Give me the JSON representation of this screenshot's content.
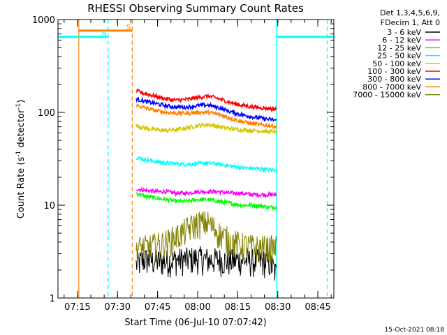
{
  "chart_data": {
    "type": "line",
    "title": "RHESSI Observing Summary Count Rates",
    "xlabel": "Start Time (06-Jul-10 07:07:42)",
    "ylabel": "Count Rate (s",
    "ylabel_sup1": "-1",
    "ylabel_mid": " detector",
    "ylabel_sup2": "-1",
    "ylabel_end": ")",
    "yscale": "log",
    "ylim": [
      1,
      1000
    ],
    "xlim_min": [
      67.7,
      171
    ],
    "y_ticks": [
      {
        "value": 1,
        "label": "1"
      },
      {
        "value": 10,
        "label": "10"
      },
      {
        "value": 100,
        "label": "100"
      },
      {
        "value": 1000,
        "label": "1000"
      }
    ],
    "x_ticks": [
      {
        "value": 75,
        "label": "07:15"
      },
      {
        "value": 90,
        "label": "07:30"
      },
      {
        "value": 105,
        "label": "07:45"
      },
      {
        "value": 120,
        "label": "08:00"
      },
      {
        "value": 135,
        "label": "08:15"
      },
      {
        "value": 150,
        "label": "08:30"
      },
      {
        "value": 165,
        "label": "08:45"
      }
    ],
    "legend_header": [
      "Det 1,3,4,5,6,9,",
      "FDecim 1, Att 0"
    ],
    "series": [
      {
        "name": "3 - 6 keV",
        "color": "#000000",
        "x": [
          97,
          100,
          104,
          108,
          112,
          116,
          120,
          124,
          128,
          132,
          136,
          140,
          144,
          147,
          149.5
        ],
        "values": [
          2.3,
          2.6,
          2.5,
          2.5,
          2.6,
          2.6,
          2.7,
          2.6,
          2.6,
          2.5,
          2.6,
          2.5,
          2.5,
          2.4,
          1.8
        ]
      },
      {
        "name": "6 - 12 keV",
        "color": "#ff00ff",
        "x": [
          97,
          100,
          104,
          108,
          112,
          116,
          120,
          124,
          128,
          132,
          136,
          140,
          144,
          147,
          149.5
        ],
        "values": [
          15,
          14.5,
          14,
          14,
          13.5,
          13.5,
          14,
          14,
          14,
          13.5,
          13.5,
          13,
          13,
          13,
          13
        ]
      },
      {
        "name": "12 - 25 keV",
        "color": "#00ff00",
        "x": [
          97,
          100,
          104,
          108,
          112,
          116,
          120,
          124,
          128,
          132,
          136,
          140,
          144,
          147,
          149.5
        ],
        "values": [
          13.5,
          12.5,
          12,
          11.5,
          11,
          11,
          11.5,
          11.5,
          11,
          10.5,
          10,
          10,
          9.8,
          9.5,
          9.5
        ]
      },
      {
        "name": "25 - 50 keV",
        "color": "#00ffff",
        "x": [
          97,
          100,
          104,
          108,
          112,
          116,
          120,
          124,
          128,
          132,
          136,
          140,
          144,
          147,
          149.5
        ],
        "values": [
          33,
          31,
          29.5,
          28.5,
          28,
          27.5,
          28,
          28.5,
          27.5,
          26.5,
          25.5,
          25,
          24.5,
          24,
          24
        ]
      },
      {
        "name": "50 - 100 keV",
        "color": "#d4c800",
        "x": [
          97,
          100,
          104,
          108,
          112,
          116,
          120,
          124,
          128,
          132,
          136,
          140,
          144,
          147,
          149.5
        ],
        "values": [
          72,
          68,
          65,
          64,
          65,
          68,
          72,
          74,
          70,
          67,
          65,
          64,
          63,
          62,
          62
        ]
      },
      {
        "name": "100 - 300 keV",
        "color": "#ff0000",
        "x": [
          97,
          100,
          104,
          108,
          112,
          116,
          120,
          124,
          128,
          132,
          136,
          140,
          144,
          147,
          149.5
        ],
        "values": [
          170,
          160,
          150,
          140,
          135,
          138,
          145,
          150,
          140,
          128,
          120,
          115,
          112,
          110,
          108
        ]
      },
      {
        "name": "300 - 800 keV",
        "color": "#0000ff",
        "x": [
          97,
          100,
          104,
          108,
          112,
          116,
          120,
          124,
          128,
          132,
          136,
          140,
          144,
          147,
          149.5
        ],
        "values": [
          140,
          132,
          125,
          118,
          114,
          114,
          118,
          120,
          112,
          102,
          95,
          90,
          86,
          84,
          82
        ]
      },
      {
        "name": "800 - 7000 keV",
        "color": "#ff8000",
        "x": [
          97,
          100,
          104,
          108,
          112,
          116,
          120,
          124,
          128,
          132,
          136,
          140,
          144,
          147,
          149.5
        ],
        "values": [
          120,
          112,
          105,
          100,
          98,
          98,
          100,
          100,
          95,
          87,
          80,
          76,
          73,
          72,
          70
        ]
      },
      {
        "name": "7000 - 15000 keV",
        "color": "#808000",
        "x": [
          97,
          100,
          104,
          108,
          112,
          116,
          120,
          124,
          128,
          132,
          136,
          140,
          144,
          147,
          149.5
        ],
        "values": [
          3.5,
          3.5,
          3.7,
          4.0,
          4.6,
          5.5,
          6.5,
          6.5,
          5.0,
          4.2,
          3.8,
          3.6,
          3.5,
          3.5,
          3.5
        ]
      }
    ],
    "vertical_lines": [
      {
        "x": 75.5,
        "color": "#ff8000",
        "style": "solid"
      },
      {
        "x": 86.5,
        "color": "#00ffff",
        "style": "dashed"
      },
      {
        "x": 95.5,
        "color": "#ff8000",
        "style": "dashed"
      },
      {
        "x": 149.5,
        "color": "#00ffff",
        "style": "solid"
      },
      {
        "x": 168.5,
        "color": "#00ffff",
        "style": "dashed"
      }
    ],
    "flag_bars": [
      {
        "label": "S",
        "color": "#ff8000",
        "x_start": 75.5,
        "x_end": 95.5,
        "value": 760
      },
      {
        "label": "N",
        "color": "#00ffff",
        "x_start": 67.7,
        "x_end": 86.5,
        "value": 650
      },
      {
        "label": "",
        "color": "#00ffff",
        "x_start": 149.5,
        "x_end": 171,
        "value": 650
      }
    ]
  },
  "footer_timestamp": "15-Oct-2021 08:18"
}
